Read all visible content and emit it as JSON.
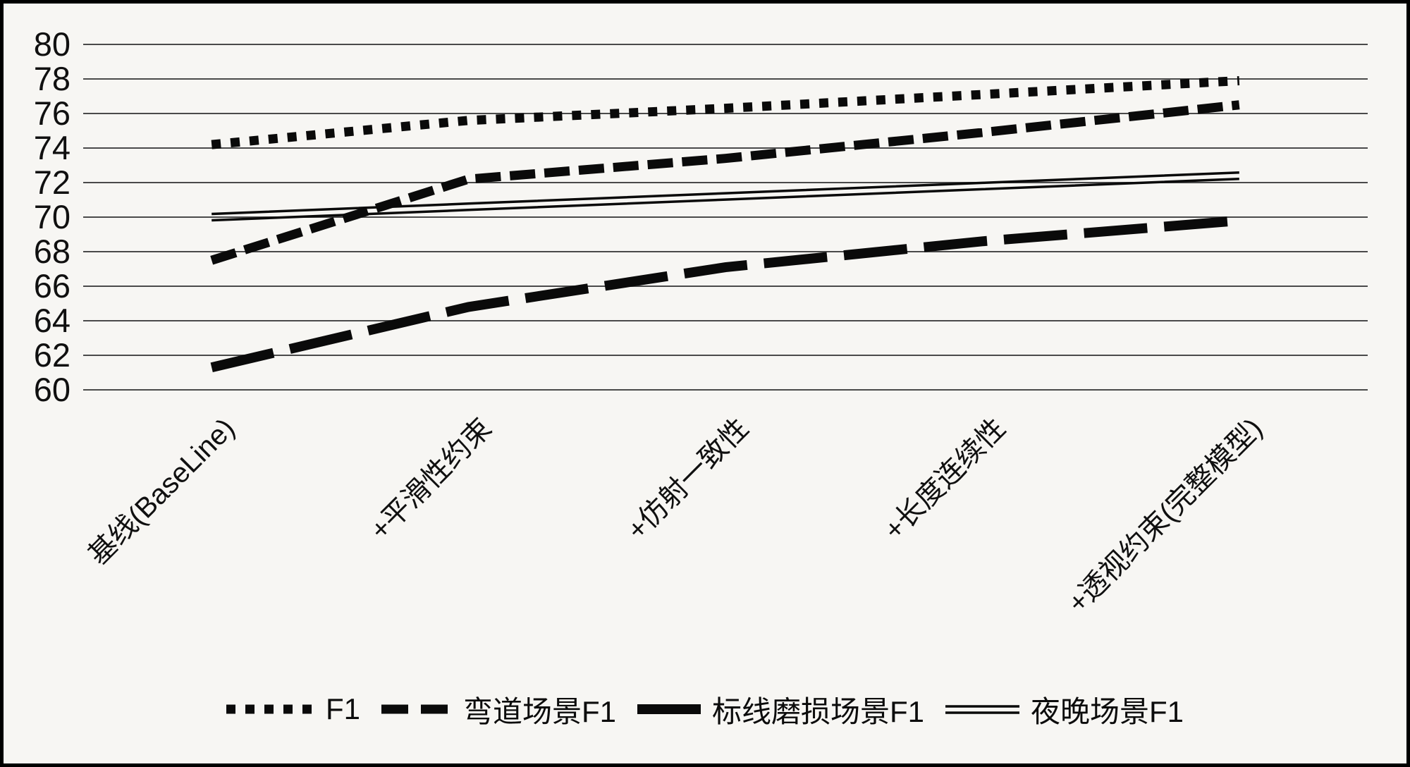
{
  "figure": {
    "background": "#f7f6f3",
    "border_color": "#000000",
    "line_color": "#0a0a0a",
    "grid_color": "#4a4a4a"
  },
  "chart_data": {
    "type": "line",
    "title": "",
    "xlabel": "",
    "ylabel": "",
    "ylim": [
      60,
      80
    ],
    "y_ticks": [
      60,
      62,
      64,
      66,
      68,
      70,
      72,
      74,
      76,
      78,
      80
    ],
    "grid": "horizontal",
    "legend_position": "bottom",
    "categories": [
      "基线(BaseLine)",
      "+平滑性约束",
      "+仿射一致性",
      "+长度连续性",
      "+透视约束(完整模型)"
    ],
    "series": [
      {
        "name": "F1",
        "style": "dotted",
        "values": [
          74.2,
          75.6,
          76.3,
          77.1,
          77.9
        ]
      },
      {
        "name": "弯道场景F1",
        "style": "dashed",
        "values": [
          67.5,
          72.2,
          73.4,
          74.9,
          76.5
        ]
      },
      {
        "name": "标线磨损场景F1",
        "style": "long-dash",
        "values": [
          61.3,
          64.8,
          67.1,
          68.6,
          69.8
        ]
      },
      {
        "name": "夜晚场景F1",
        "style": "double",
        "values": [
          70.0,
          70.6,
          71.2,
          71.8,
          72.4
        ]
      }
    ]
  }
}
